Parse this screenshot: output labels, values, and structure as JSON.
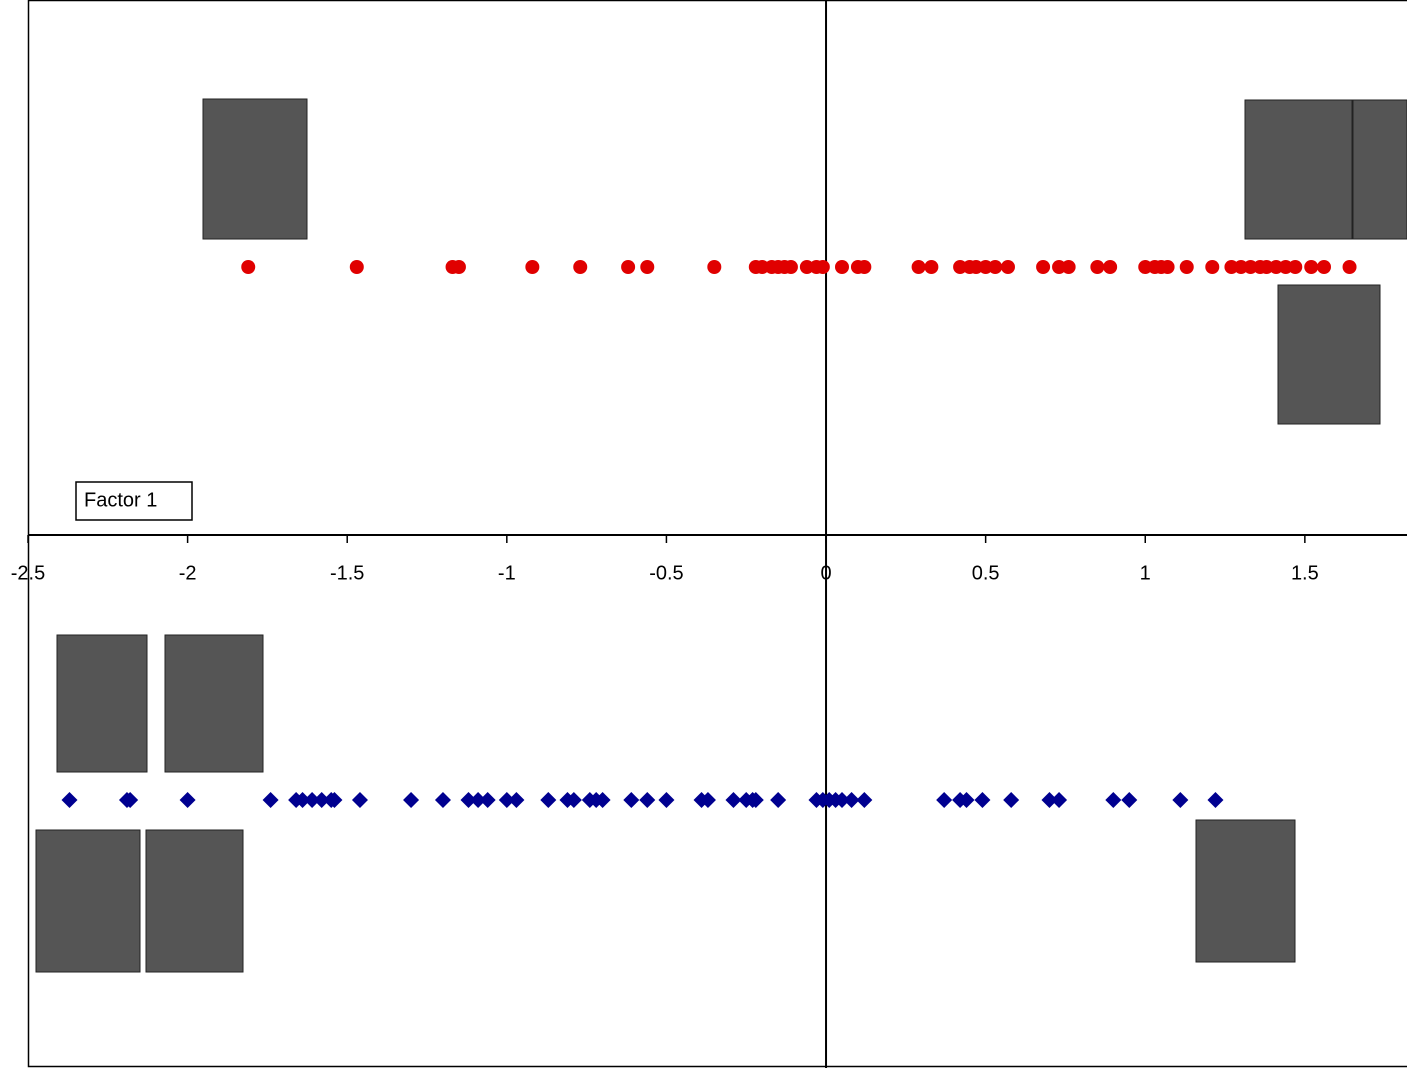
{
  "chart_data": {
    "type": "strip",
    "annotation": "Factor 1",
    "xlim": [
      -2.5,
      1.82
    ],
    "xticks": [
      -2.5,
      -2,
      -1.5,
      -1,
      -0.5,
      0,
      0.5,
      1,
      1.5
    ],
    "series": [
      {
        "color": "#e00000",
        "marker": "circle",
        "values": [
          -1.81,
          -1.47,
          -1.17,
          -1.15,
          -0.92,
          -0.77,
          -0.62,
          -0.56,
          -0.35,
          -0.22,
          -0.2,
          -0.17,
          -0.15,
          -0.13,
          -0.11,
          -0.06,
          -0.03,
          -0.01,
          0.05,
          0.1,
          0.12,
          0.29,
          0.33,
          0.42,
          0.45,
          0.47,
          0.5,
          0.53,
          0.57,
          0.68,
          0.73,
          0.76,
          0.85,
          0.89,
          1.0,
          1.03,
          1.05,
          1.07,
          1.13,
          1.21,
          1.27,
          1.3,
          1.33,
          1.36,
          1.38,
          1.41,
          1.44,
          1.47,
          1.52,
          1.56,
          1.64
        ]
      },
      {
        "color": "#000090",
        "marker": "diamond",
        "values": [
          -2.37,
          -2.19,
          -2.18,
          -2.0,
          -1.74,
          -1.66,
          -1.64,
          -1.61,
          -1.58,
          -1.55,
          -1.54,
          -1.46,
          -1.3,
          -1.2,
          -1.12,
          -1.09,
          -1.06,
          -1.0,
          -0.97,
          -0.87,
          -0.81,
          -0.79,
          -0.74,
          -0.72,
          -0.7,
          -0.61,
          -0.56,
          -0.5,
          -0.39,
          -0.37,
          -0.29,
          -0.25,
          -0.23,
          -0.22,
          -0.15,
          -0.03,
          -0.01,
          0.01,
          0.03,
          0.05,
          0.08,
          0.12,
          0.37,
          0.42,
          0.44,
          0.49,
          0.58,
          0.7,
          0.73,
          0.9,
          0.95,
          1.11,
          1.22
        ]
      }
    ]
  }
}
